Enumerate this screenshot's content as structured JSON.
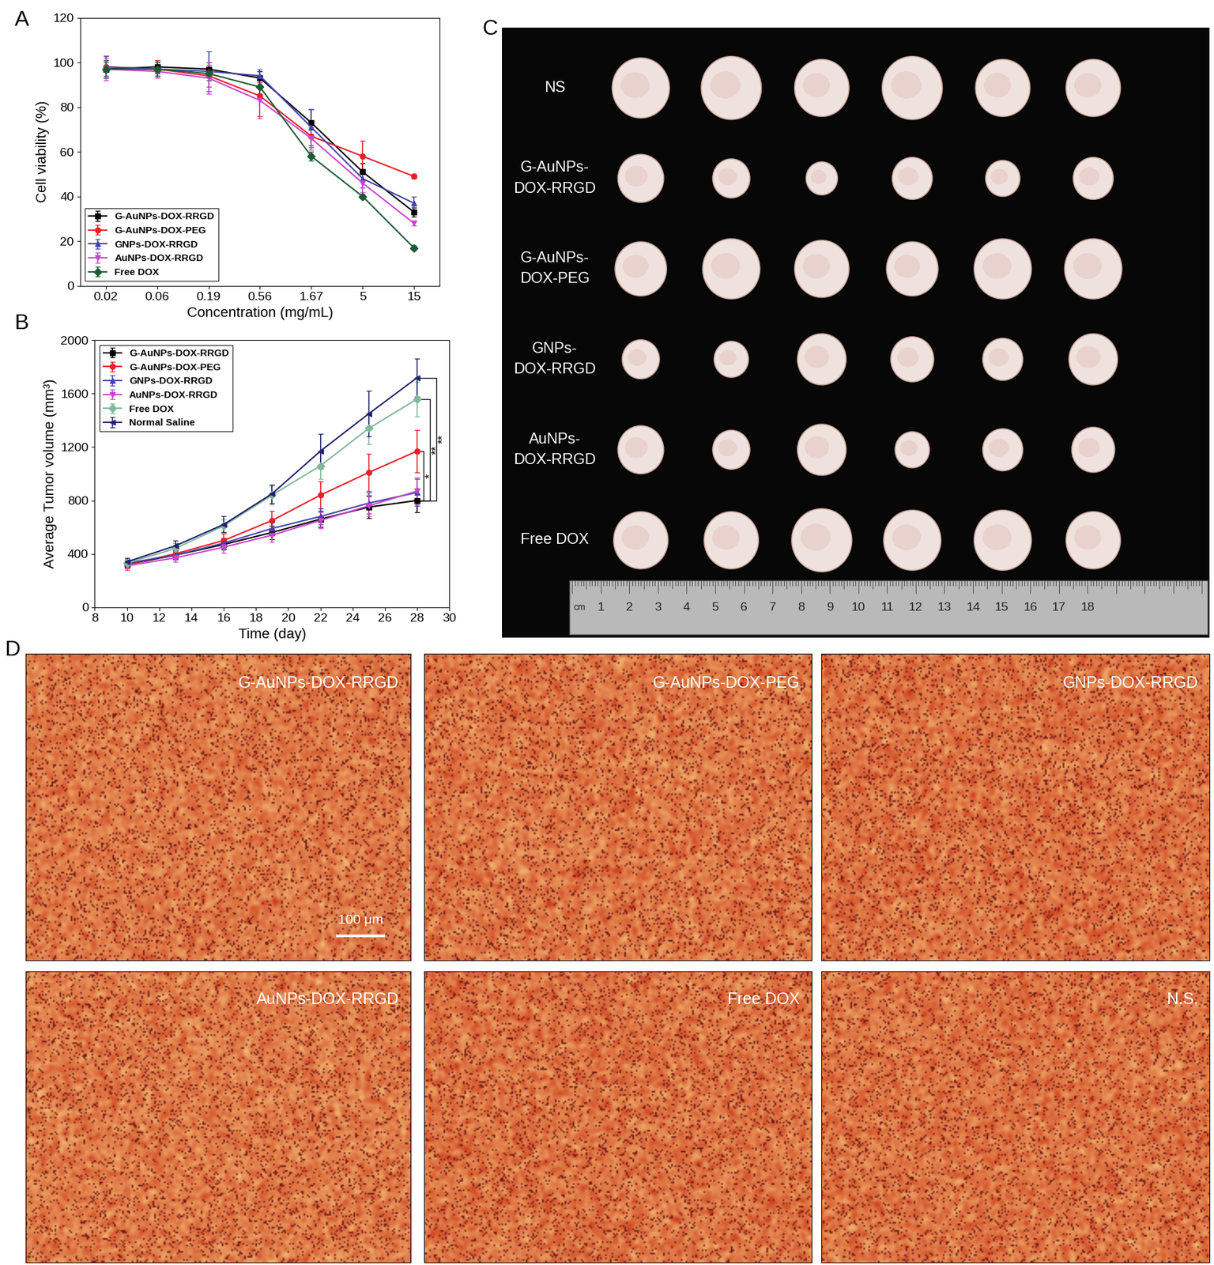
{
  "chart_data": [
    {
      "type": "line",
      "panel": "A",
      "x_label": "Concentration (mg/mL)",
      "y_label": "Cell viability (%)",
      "categories": [
        "0.02",
        "0.06",
        "0.19",
        "0.56",
        "1.67",
        "5",
        "15"
      ],
      "ylim": [
        0,
        120
      ],
      "yticks": [
        0,
        20,
        40,
        60,
        80,
        100,
        120
      ],
      "legend": "lower left",
      "series": [
        {
          "name": "G-AuNPs-DOX-RRGD",
          "color": "#000000",
          "marker": "square",
          "values": [
            97,
            98,
            97,
            93,
            73,
            51,
            33
          ],
          "errors": [
            4,
            3,
            3,
            3,
            6,
            4,
            2
          ]
        },
        {
          "name": "G-AuNPs-DOX-PEG",
          "color": "#e8202a",
          "marker": "circle",
          "values": [
            98,
            97,
            94,
            85,
            67,
            58,
            49
          ],
          "errors": [
            5,
            4,
            5,
            9,
            5,
            7,
            1
          ]
        },
        {
          "name": "GNPs-DOX-RRGD",
          "color": "#4444a8",
          "marker": "triangle_up",
          "values": [
            98,
            97,
            96,
            94,
            71,
            48,
            37
          ],
          "errors": [
            5,
            3,
            9,
            3,
            8,
            4,
            3
          ]
        },
        {
          "name": "AuNPs-DOX-RRGD",
          "color": "#cc44cc",
          "marker": "triangle_down",
          "values": [
            97,
            96,
            93,
            83,
            66,
            46,
            28
          ],
          "errors": [
            5,
            3,
            7,
            8,
            5,
            4,
            1
          ]
        },
        {
          "name": "Free DOX",
          "color": "#1d5a36",
          "marker": "diamond",
          "values": [
            97,
            97,
            95,
            89,
            58,
            40,
            17
          ],
          "errors": [
            3,
            3,
            3,
            3,
            2,
            1,
            1
          ]
        }
      ]
    },
    {
      "type": "line",
      "panel": "B",
      "x_label": "Time (day)",
      "y_label": "Average Tumor volume (mm³)",
      "x": [
        10,
        13,
        16,
        19,
        22,
        25,
        28
      ],
      "xlim": [
        8,
        30
      ],
      "xticks": [
        8,
        10,
        12,
        14,
        16,
        18,
        20,
        22,
        24,
        26,
        28,
        30
      ],
      "ylim": [
        0,
        2000
      ],
      "yticks": [
        0,
        400,
        800,
        1200,
        1600,
        2000
      ],
      "legend": "upper left",
      "series": [
        {
          "name": "G-AuNPs-DOX-RRGD",
          "color": "#000000",
          "marker": "square",
          "values": [
            320,
            390,
            470,
            560,
            660,
            750,
            800
          ],
          "errors": [
            30,
            30,
            40,
            50,
            60,
            80,
            90
          ]
        },
        {
          "name": "G-AuNPs-DOX-PEG",
          "color": "#e8202a",
          "marker": "circle",
          "values": [
            320,
            400,
            500,
            650,
            840,
            1010,
            1170
          ],
          "errors": [
            30,
            40,
            50,
            70,
            100,
            140,
            160
          ]
        },
        {
          "name": "GNPs-DOX-RRGD",
          "color": "#4444a8",
          "marker": "triangle_up",
          "values": [
            330,
            390,
            480,
            590,
            680,
            780,
            860
          ],
          "errors": [
            30,
            30,
            40,
            50,
            60,
            80,
            100
          ]
        },
        {
          "name": "AuNPs-DOX-RRGD",
          "color": "#cc44cc",
          "marker": "triangle_down",
          "values": [
            310,
            370,
            450,
            540,
            650,
            760,
            870
          ],
          "errors": [
            30,
            30,
            40,
            50,
            60,
            80,
            100
          ]
        },
        {
          "name": "Free DOX",
          "color": "#7fb89a",
          "marker": "diamond",
          "values": [
            330,
            440,
            610,
            840,
            1060,
            1340,
            1560
          ],
          "errors": [
            30,
            40,
            50,
            70,
            100,
            120,
            130
          ]
        },
        {
          "name": "Normal Saline",
          "color": "#22226e",
          "marker": "triangle_left",
          "values": [
            340,
            460,
            620,
            850,
            1170,
            1450,
            1720
          ],
          "errors": [
            30,
            40,
            60,
            70,
            130,
            170,
            140
          ]
        }
      ],
      "annotations": [
        {
          "text": "**",
          "from": "Normal Saline",
          "to": "G-AuNPs-DOX-RRGD"
        },
        {
          "text": "**",
          "from": "Free DOX",
          "to": "G-AuNPs-DOX-RRGD"
        },
        {
          "text": "*",
          "from": "G-AuNPs-DOX-PEG",
          "to": "G-AuNPs-DOX-RRGD"
        }
      ]
    }
  ],
  "tumor_photo": {
    "panel": "C",
    "rows": [
      {
        "label": "NS",
        "diameters_cm": [
          2.0,
          2.1,
          1.9,
          2.1,
          1.9,
          1.9
        ]
      },
      {
        "label": "G-AuNPs-\nDOX-RRGD",
        "diameters_cm": [
          1.6,
          1.3,
          1.1,
          1.4,
          1.2,
          1.4
        ]
      },
      {
        "label": "G-AuNPs-\nDOX-PEG",
        "diameters_cm": [
          1.8,
          2.0,
          1.9,
          1.8,
          2.0,
          2.0
        ]
      },
      {
        "label": "GNPs-\nDOX-RRGD",
        "diameters_cm": [
          1.3,
          1.2,
          1.7,
          1.5,
          1.4,
          1.7
        ]
      },
      {
        "label": "AuNPs-\nDOX-RRGD",
        "diameters_cm": [
          1.6,
          1.3,
          1.7,
          1.2,
          1.4,
          1.5
        ]
      },
      {
        "label": "Free DOX",
        "diameters_cm": [
          1.9,
          1.9,
          2.1,
          2.0,
          2.0,
          1.9
        ]
      }
    ],
    "ruler": {
      "unit": "cm",
      "ticks": [
        1,
        2,
        3,
        4,
        5,
        6,
        7,
        8,
        9,
        10,
        11,
        12,
        13,
        14,
        15,
        16,
        17,
        18
      ]
    }
  },
  "histology": {
    "panel": "D",
    "images": [
      "G-AuNPs-DOX-RRGD",
      "G-AuNPs-DOX-PEG",
      "GNPs-DOX-RRGD",
      "AuNPs-DOX-RRGD",
      "Free DOX",
      "N.S."
    ],
    "scale_bar": "100 μm"
  }
}
